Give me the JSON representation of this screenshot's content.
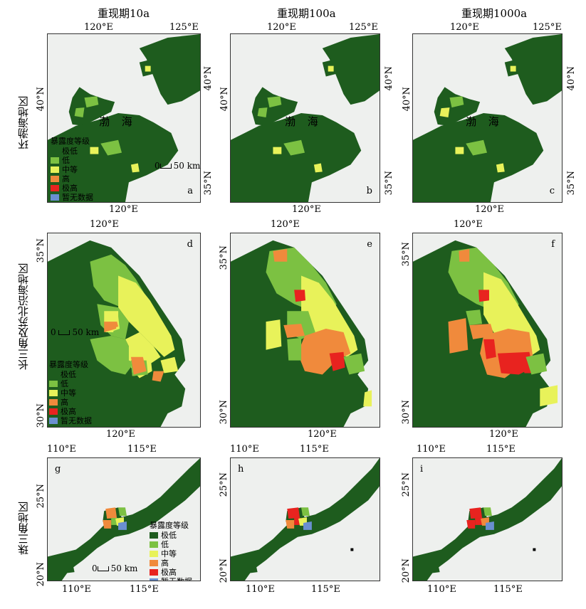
{
  "column_titles": [
    "重现期10a",
    "重现期100a",
    "重现期1000a"
  ],
  "row_titles": [
    "环渤海地区",
    "长三角及苏北沿海地区",
    "珠三角地区"
  ],
  "sea_label": "渤 海",
  "panel_labels": [
    "a",
    "b",
    "c",
    "d",
    "e",
    "f",
    "g",
    "h",
    "i"
  ],
  "ticks": {
    "r1_top": [
      "120°E",
      "125°E"
    ],
    "r1_right": [
      "40°N",
      "35°N"
    ],
    "r1_left": [
      "40°N"
    ],
    "r1_bottom": [
      "120°E"
    ],
    "r2_top": [
      "120°E"
    ],
    "r2_left": [
      "35°N",
      "30°N"
    ],
    "r2_bottom": [
      "120°E"
    ],
    "r3_top": [
      "110°E",
      "115°E"
    ],
    "r3_left": [
      "25°N",
      "20°N"
    ],
    "r3_bottom": [
      "110°E",
      "115°E"
    ]
  },
  "scale_bar": {
    "zero": "0",
    "label": "50 km"
  },
  "legend": {
    "title": "暴露度等级",
    "title_a": "暴露度等级",
    "items": [
      "极低",
      "低",
      "中等",
      "高",
      "极高",
      "暂无数据"
    ],
    "colors": [
      "#1e5c1e",
      "#7cc142",
      "#e8f25a",
      "#f08a3c",
      "#e8231f",
      "#6a8fd0"
    ]
  },
  "colors": {
    "background": "#eef0ee",
    "coast": "#111111"
  }
}
